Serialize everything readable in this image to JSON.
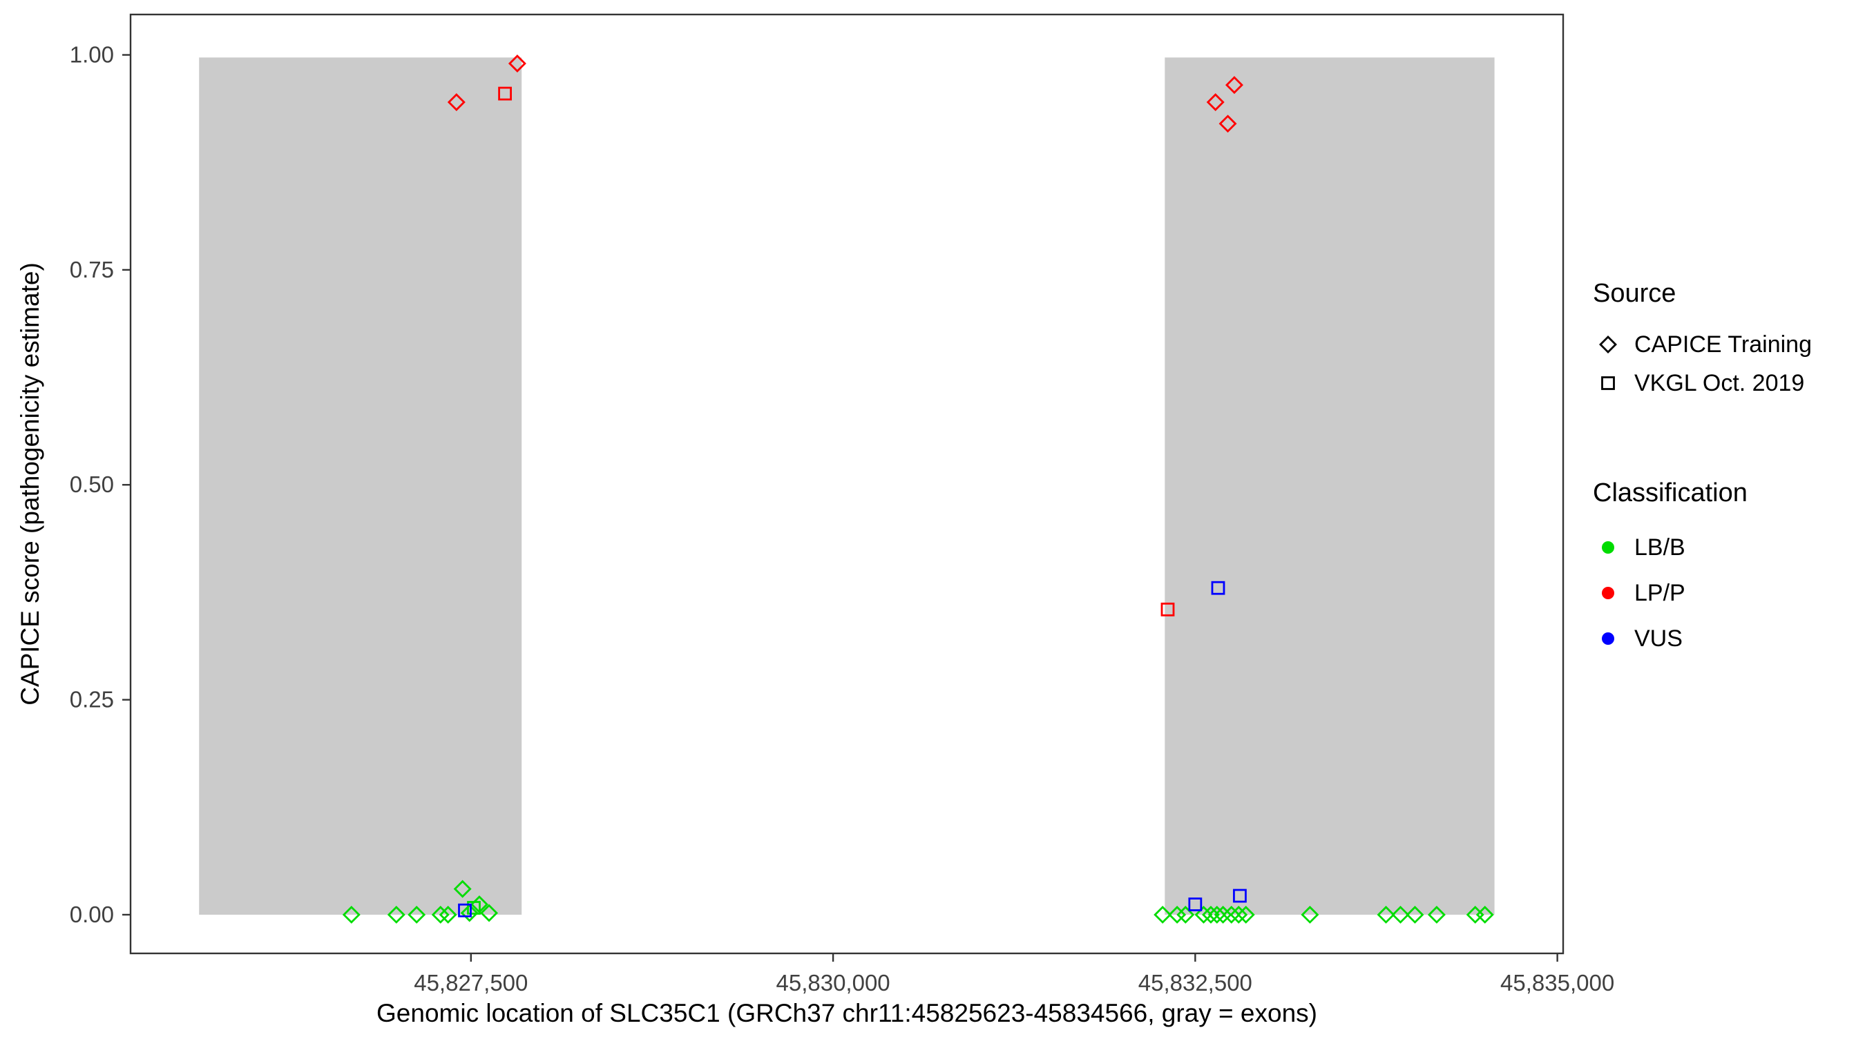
{
  "figure": {
    "background": "#FFFFFF",
    "panel_border_color": "#333333",
    "tick_label_color": "#404040"
  },
  "chart_data": {
    "type": "scatter",
    "title": "",
    "xlabel": "Genomic location of SLC35C1 (GRCh37 chr11:45825623-45834566, gray = exons)",
    "ylabel": "CAPICE score (pathogenicity estimate)",
    "xlim": [
      45825150,
      45835040
    ],
    "ylim": [
      -0.045,
      1.047
    ],
    "grid": false,
    "legend_position": "right",
    "x_ticks": [
      {
        "value": 45827500,
        "label": "45,827,500"
      },
      {
        "value": 45830000,
        "label": "45,830,000"
      },
      {
        "value": 45832500,
        "label": "45,832,500"
      },
      {
        "value": 45835000,
        "label": "45,835,000"
      }
    ],
    "y_ticks": [
      {
        "value": 0.0,
        "label": "0.00"
      },
      {
        "value": 0.25,
        "label": "0.25"
      },
      {
        "value": 0.5,
        "label": "0.50"
      },
      {
        "value": 0.75,
        "label": "0.75"
      },
      {
        "value": 1.0,
        "label": "1.00"
      }
    ],
    "exons": {
      "color": "#CBCBCB",
      "ymin": 0,
      "ymax": 0.997,
      "ranges": [
        [
          45825623,
          45827850
        ],
        [
          45832290,
          45834566
        ]
      ]
    },
    "series": [
      {
        "name": "LB/B - CAPICE Training",
        "classification": "LB/B",
        "source": "CAPICE Training",
        "shape": "diamond",
        "color": "#00DC00",
        "points": [
          [
            45826675,
            0
          ],
          [
            45826985,
            0
          ],
          [
            45827125,
            0
          ],
          [
            45827290,
            0
          ],
          [
            45827342,
            0
          ],
          [
            45827442,
            0.03
          ],
          [
            45827490,
            0.002
          ],
          [
            45827558,
            0.012
          ],
          [
            45827625,
            0.002
          ],
          [
            45832275,
            0
          ],
          [
            45832375,
            0
          ],
          [
            45832433,
            0
          ],
          [
            45832558,
            0
          ],
          [
            45832608,
            0
          ],
          [
            45832650,
            0
          ],
          [
            45832692,
            0
          ],
          [
            45832750,
            0
          ],
          [
            45832800,
            0
          ],
          [
            45832850,
            0
          ],
          [
            45833292,
            0
          ],
          [
            45833817,
            0
          ],
          [
            45833917,
            0
          ],
          [
            45834017,
            0
          ],
          [
            45834167,
            0
          ],
          [
            45834433,
            0
          ],
          [
            45834500,
            0
          ]
        ]
      },
      {
        "name": "LB/B - VKGL Oct. 2019",
        "classification": "LB/B",
        "source": "VKGL Oct. 2019",
        "shape": "square",
        "color": "#00DC00",
        "points": [
          [
            45827520,
            0.008
          ]
        ]
      },
      {
        "name": "LP/P - CAPICE Training",
        "classification": "LP/P",
        "source": "CAPICE Training",
        "shape": "diamond",
        "color": "#FF0000",
        "points": [
          [
            45827400,
            0.945
          ],
          [
            45827820,
            0.99
          ],
          [
            45832640,
            0.945
          ],
          [
            45832770,
            0.965
          ],
          [
            45832725,
            0.92
          ]
        ]
      },
      {
        "name": "LP/P - VKGL Oct. 2019",
        "classification": "LP/P",
        "source": "VKGL Oct. 2019",
        "shape": "square",
        "color": "#FF0000",
        "points": [
          [
            45827735,
            0.955
          ],
          [
            45832310,
            0.355
          ]
        ]
      },
      {
        "name": "VUS - VKGL Oct. 2019",
        "classification": "VUS",
        "source": "VKGL Oct. 2019",
        "shape": "square",
        "color": "#0000FF",
        "points": [
          [
            45827458,
            0.005
          ],
          [
            45832500,
            0.012
          ],
          [
            45832658,
            0.38
          ],
          [
            45832808,
            0.022
          ]
        ]
      }
    ]
  },
  "legend": {
    "source": {
      "title": "Source",
      "items": [
        {
          "label": "CAPICE Training",
          "shape": "diamond"
        },
        {
          "label": "VKGL Oct. 2019",
          "shape": "square"
        }
      ]
    },
    "classification": {
      "title": "Classification",
      "items": [
        {
          "label": "LB/B",
          "color": "#00DC00"
        },
        {
          "label": "LP/P",
          "color": "#FF0000"
        },
        {
          "label": "VUS",
          "color": "#0000FF"
        }
      ]
    }
  }
}
